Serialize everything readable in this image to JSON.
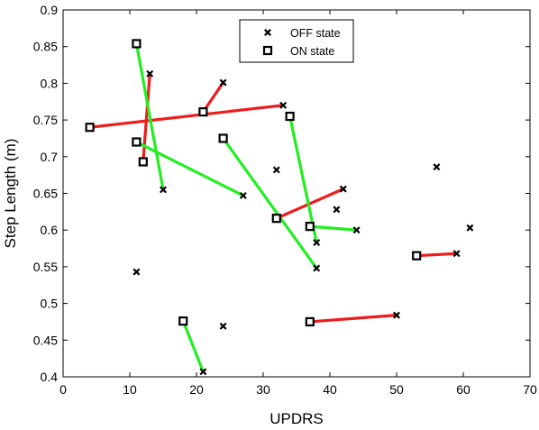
{
  "chart_data": {
    "type": "scatter",
    "title": "",
    "xlabel": "UPDRS",
    "ylabel": "Step Length (m)",
    "xlim": [
      0,
      70
    ],
    "ylim": [
      0.4,
      0.9
    ],
    "xticks": [
      "0",
      "10",
      "20",
      "30",
      "40",
      "50",
      "60",
      "70"
    ],
    "yticks": [
      "0.4",
      "0.45",
      "0.5",
      "0.55",
      "0.6",
      "0.65",
      "0.7",
      "0.75",
      "0.8",
      "0.85",
      "0.9"
    ],
    "grid": false,
    "legend_position": "top-center",
    "series": [
      {
        "name": "OFF state",
        "marker": "x",
        "color": "#000000",
        "points": [
          {
            "x": 13,
            "y": 0.813
          },
          {
            "x": 24,
            "y": 0.801
          },
          {
            "x": 33,
            "y": 0.77
          },
          {
            "x": 32,
            "y": 0.682
          },
          {
            "x": 15,
            "y": 0.655
          },
          {
            "x": 27,
            "y": 0.647
          },
          {
            "x": 42,
            "y": 0.656
          },
          {
            "x": 41,
            "y": 0.628
          },
          {
            "x": 56,
            "y": 0.686
          },
          {
            "x": 61,
            "y": 0.603
          },
          {
            "x": 44,
            "y": 0.6
          },
          {
            "x": 38,
            "y": 0.583
          },
          {
            "x": 59,
            "y": 0.568
          },
          {
            "x": 38,
            "y": 0.548
          },
          {
            "x": 11,
            "y": 0.543
          },
          {
            "x": 50,
            "y": 0.484
          },
          {
            "x": 24,
            "y": 0.469
          },
          {
            "x": 21,
            "y": 0.407
          }
        ]
      },
      {
        "name": "ON state",
        "marker": "square",
        "color": "#000000",
        "points": [
          {
            "x": 11,
            "y": 0.854
          },
          {
            "x": 4,
            "y": 0.74
          },
          {
            "x": 21,
            "y": 0.761
          },
          {
            "x": 34,
            "y": 0.755
          },
          {
            "x": 24,
            "y": 0.725
          },
          {
            "x": 11,
            "y": 0.72
          },
          {
            "x": 12,
            "y": 0.693
          },
          {
            "x": 32,
            "y": 0.616
          },
          {
            "x": 37,
            "y": 0.605
          },
          {
            "x": 53,
            "y": 0.565
          },
          {
            "x": 37,
            "y": 0.475
          },
          {
            "x": 18,
            "y": 0.476
          }
        ]
      }
    ],
    "connections": {
      "red": {
        "color": "#ee1c1c",
        "pairs": [
          [
            {
              "x": 12,
              "y": 0.693
            },
            {
              "x": 13,
              "y": 0.813
            }
          ],
          [
            {
              "x": 21,
              "y": 0.761
            },
            {
              "x": 24,
              "y": 0.801
            }
          ],
          [
            {
              "x": 4,
              "y": 0.74
            },
            {
              "x": 33,
              "y": 0.77
            }
          ],
          [
            {
              "x": 32,
              "y": 0.616
            },
            {
              "x": 42,
              "y": 0.656
            }
          ],
          [
            {
              "x": 53,
              "y": 0.565
            },
            {
              "x": 59,
              "y": 0.568
            }
          ],
          [
            {
              "x": 37,
              "y": 0.475
            },
            {
              "x": 50,
              "y": 0.484
            }
          ]
        ]
      },
      "green": {
        "color": "#22ee22",
        "pairs": [
          [
            {
              "x": 11,
              "y": 0.854
            },
            {
              "x": 15,
              "y": 0.655
            }
          ],
          [
            {
              "x": 11,
              "y": 0.72
            },
            {
              "x": 27,
              "y": 0.647
            }
          ],
          [
            {
              "x": 24,
              "y": 0.725
            },
            {
              "x": 38,
              "y": 0.548
            }
          ],
          [
            {
              "x": 34,
              "y": 0.755
            },
            {
              "x": 38,
              "y": 0.583
            }
          ],
          [
            {
              "x": 37,
              "y": 0.605
            },
            {
              "x": 44,
              "y": 0.6
            }
          ],
          [
            {
              "x": 18,
              "y": 0.476
            },
            {
              "x": 21,
              "y": 0.407
            }
          ]
        ]
      }
    }
  }
}
